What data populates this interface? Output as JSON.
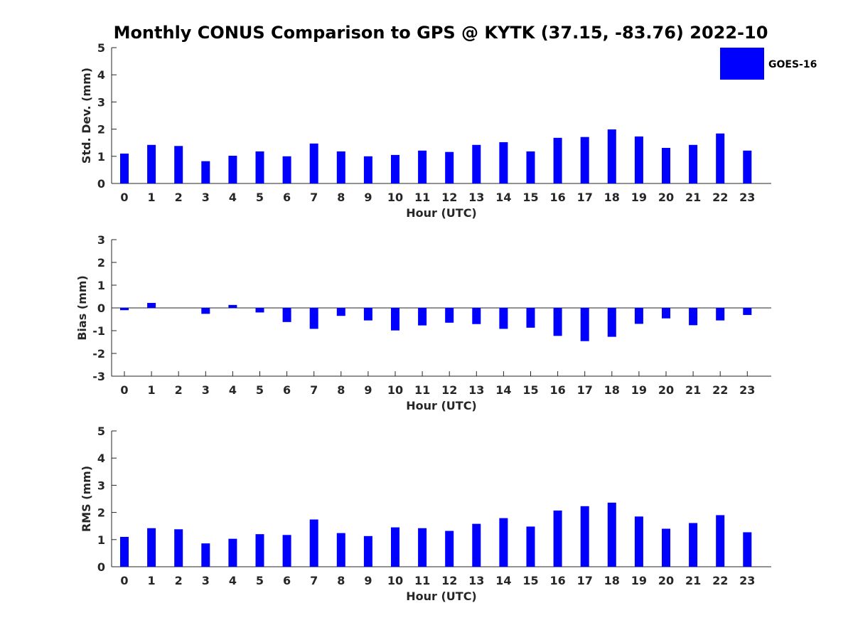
{
  "chart_data": {
    "type": "bar",
    "title": "Monthly CONUS Comparison to GPS @ KYTK (37.15, -83.76) 2022-10",
    "legend": {
      "placement": "top-right",
      "entries": [
        "GOES-16"
      ]
    },
    "bar_color": "#0000ff",
    "categories": [
      "0",
      "1",
      "2",
      "3",
      "4",
      "5",
      "6",
      "7",
      "8",
      "9",
      "10",
      "11",
      "12",
      "13",
      "14",
      "15",
      "16",
      "17",
      "18",
      "19",
      "20",
      "21",
      "22",
      "23"
    ],
    "panels": [
      {
        "id": "std",
        "ylabel": "Std. Dev. (mm)",
        "xlabel": "Hour (UTC)",
        "ylim": [
          0,
          5
        ],
        "yticks": [
          "0",
          "1",
          "2",
          "3",
          "4",
          "5"
        ],
        "grid": false,
        "series": [
          {
            "name": "GOES-16",
            "values": [
              1.1,
              1.42,
              1.38,
              0.82,
              1.02,
              1.18,
              1.0,
              1.47,
              1.18,
              1.0,
              1.05,
              1.21,
              1.16,
              1.42,
              1.52,
              1.18,
              1.68,
              1.71,
              1.99,
              1.73,
              1.31,
              1.42,
              1.84,
              1.21
            ]
          }
        ]
      },
      {
        "id": "bias",
        "ylabel": "Bias (mm)",
        "xlabel": "Hour (UTC)",
        "ylim": [
          -3,
          3
        ],
        "yticks": [
          "-3",
          "-2",
          "-1",
          "0",
          "1",
          "2",
          "3"
        ],
        "grid": false,
        "series": [
          {
            "name": "GOES-16",
            "values": [
              -0.1,
              0.22,
              0.0,
              -0.26,
              0.13,
              -0.2,
              -0.62,
              -0.92,
              -0.35,
              -0.55,
              -0.99,
              -0.77,
              -0.65,
              -0.71,
              -0.92,
              -0.87,
              -1.23,
              -1.46,
              -1.27,
              -0.7,
              -0.46,
              -0.76,
              -0.55,
              -0.31
            ]
          }
        ]
      },
      {
        "id": "rms",
        "ylabel": "RMS (mm)",
        "xlabel": "Hour (UTC)",
        "ylim": [
          0,
          5
        ],
        "yticks": [
          "0",
          "1",
          "2",
          "3",
          "4",
          "5"
        ],
        "grid": false,
        "series": [
          {
            "name": "GOES-16",
            "values": [
              1.1,
              1.42,
              1.38,
              0.86,
              1.03,
              1.2,
              1.17,
              1.74,
              1.24,
              1.13,
              1.45,
              1.42,
              1.32,
              1.58,
              1.79,
              1.48,
              2.07,
              2.23,
              2.36,
              1.85,
              1.4,
              1.61,
              1.9,
              1.27
            ]
          }
        ]
      }
    ]
  }
}
